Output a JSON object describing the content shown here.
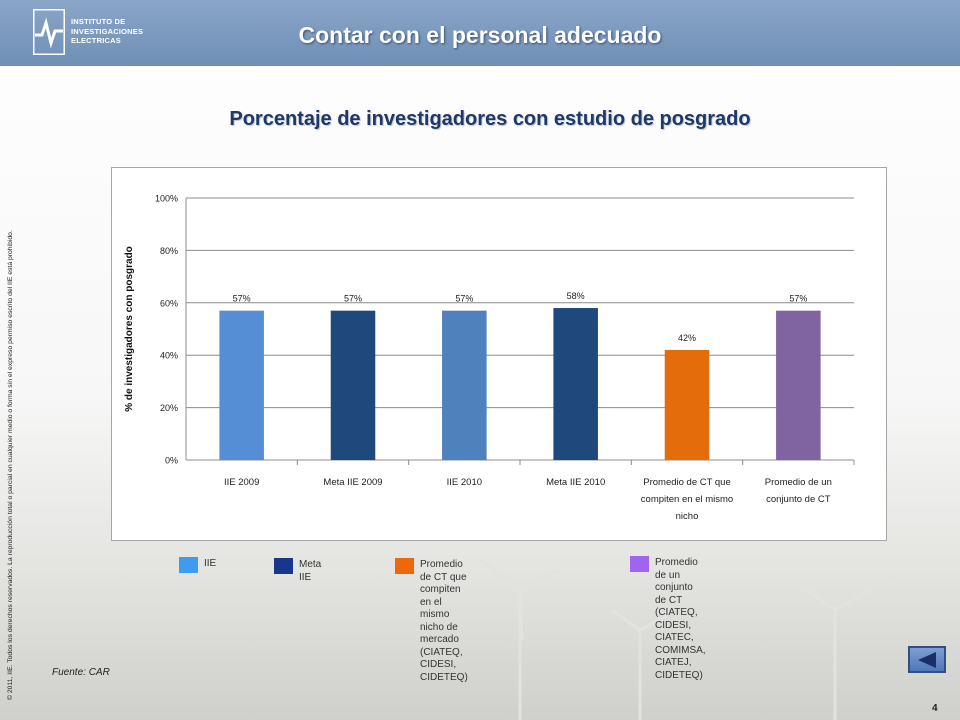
{
  "header": {
    "logo_lines": [
      "INSTITUTO DE",
      "INVESTIGACIONES",
      "ELECTRICAS"
    ],
    "title": "Contar con el personal adecuado"
  },
  "copyright": "© 2011, IIE. Todos los derechos reservados. La reproducción total o parcial en cualquier medio o forma sin el expreso permiso escrito del IIE está prohibido.",
  "chart_data": {
    "type": "bar",
    "title": "Porcentaje de investigadores con estudio de posgrado",
    "ylabel": "% de investigadores con posgrado",
    "xlabel": "",
    "ylim": [
      0,
      100
    ],
    "yticks": [
      0,
      20,
      40,
      60,
      80,
      100
    ],
    "ytick_labels": [
      "0%",
      "20%",
      "40%",
      "60%",
      "80%",
      "100%"
    ],
    "grid": true,
    "categories": [
      [
        "IIE 2009"
      ],
      [
        "Meta IIE 2009"
      ],
      [
        "IIE 2010"
      ],
      [
        "Meta IIE 2010"
      ],
      [
        "Promedio de CT que",
        "compiten en el mismo",
        "nicho"
      ],
      [
        "Promedio de un",
        "conjunto de  CT"
      ]
    ],
    "values": [
      57,
      57,
      57,
      58,
      42,
      57
    ],
    "data_labels": [
      "57%",
      "57%",
      "57%",
      "58%",
      "42%",
      "57%"
    ],
    "colors": [
      "#558ed5",
      "#1f497d",
      "#4f81bd",
      "#1f497d",
      "#e46c0a",
      "#8064a2"
    ]
  },
  "legend": [
    {
      "lines": [
        "IIE"
      ],
      "color": "#3e9cf0"
    },
    {
      "lines": [
        "Meta IIE"
      ],
      "color": "#17378c"
    },
    {
      "lines": [
        "Promedio de CT que compiten en el",
        "mismo nicho de mercado (CIATEQ,",
        "CIDESI, CIDETEQ)"
      ],
      "color": "#f0660a"
    },
    {
      "lines": [
        "Promedio de un conjunto de CT",
        "(CIATEQ, CIDESI, CIATEC,",
        "COMIMSA, CIATEJ, CIDETEQ)"
      ],
      "color": "#a064f0"
    }
  ],
  "source": "Fuente: CAR",
  "page_number": "4",
  "icons": {
    "back": "triangle-left-icon"
  }
}
